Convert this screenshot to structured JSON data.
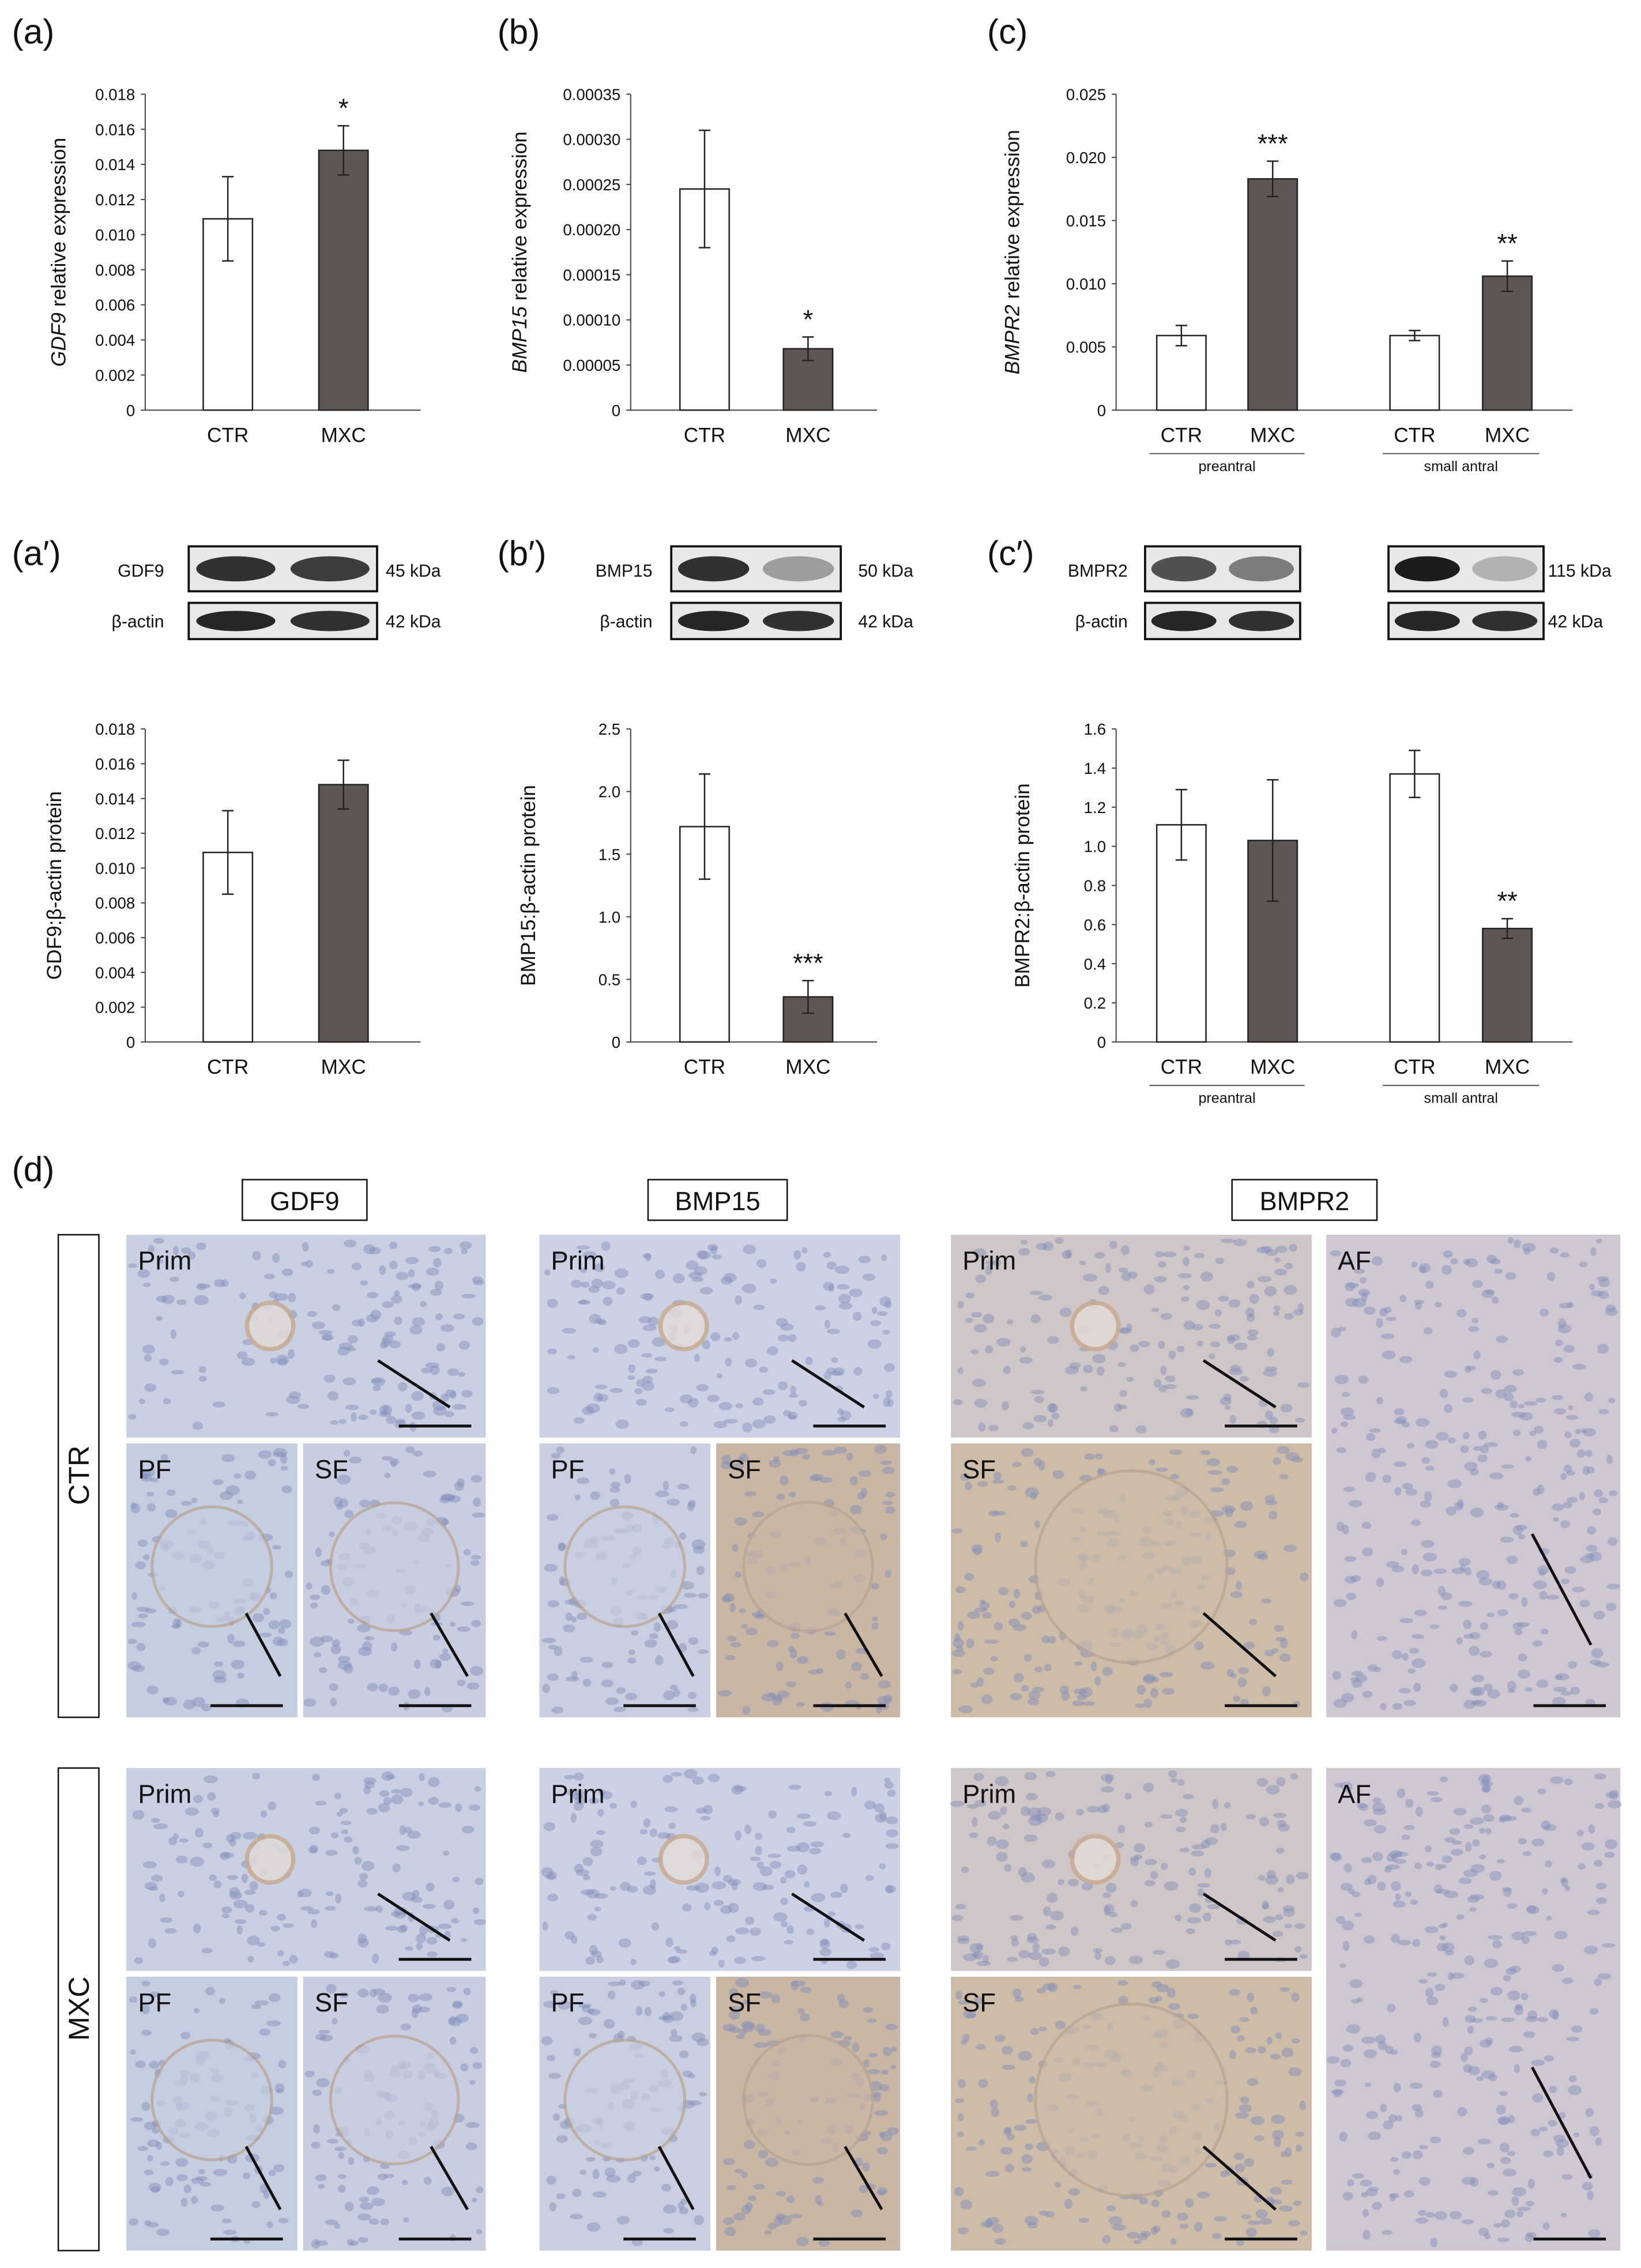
{
  "chart_data": [
    {
      "type": "bar",
      "panel": "(a)",
      "ylabel_italic": "GDF9",
      "ylabel": "relative expression",
      "categories": [
        "CTR",
        "MXC"
      ],
      "values": [
        0.0109,
        0.0148
      ],
      "errors": [
        0.0024,
        0.0014
      ],
      "significance": [
        null,
        "*"
      ],
      "colors": [
        "#ffffff",
        "#5e5655"
      ],
      "ylim": [
        0,
        0.018
      ],
      "yticks": [
        0,
        0.002,
        0.004,
        0.006,
        0.008,
        {
          "value": 0.01,
          "label": "0.010"
        },
        0.012,
        0.014,
        0.016,
        0.018
      ]
    },
    {
      "type": "bar",
      "panel": "(b)",
      "ylabel_italic": "BMP15",
      "ylabel": "relative expression",
      "categories": [
        "CTR",
        "MXC"
      ],
      "values": [
        0.000245,
        6.8e-05
      ],
      "errors": [
        6.5e-05,
        1.3e-05
      ],
      "significance": [
        null,
        "*"
      ],
      "colors": [
        "#ffffff",
        "#5e5655"
      ],
      "ylim": [
        0,
        0.00035
      ],
      "yticks": [
        0,
        5e-05,
        {
          "value": 0.0001,
          "label": "0.00010"
        },
        0.00015,
        {
          "value": 0.0002,
          "label": "0.00020"
        },
        0.00025,
        {
          "value": 0.0003,
          "label": "0.00030"
        },
        0.00035
      ]
    },
    {
      "type": "bar",
      "panel": "(c)",
      "ylabel_italic": "BMPR2",
      "ylabel": "relative expression",
      "categories": [
        "CTR",
        "MXC",
        "CTR",
        "MXC"
      ],
      "groups": [
        "preantral",
        "small antral"
      ],
      "values": [
        0.0059,
        0.0183,
        0.0059,
        0.0106
      ],
      "errors": [
        0.0008,
        0.0014,
        0.0004,
        0.0012
      ],
      "significance": [
        null,
        "***",
        null,
        "**"
      ],
      "colors": [
        "#ffffff",
        "#5e5655",
        "#ffffff",
        "#5e5655"
      ],
      "ylim": [
        0,
        0.025
      ],
      "yticks": [
        0,
        0.005,
        {
          "value": 0.01,
          "label": "0.010"
        },
        0.015,
        {
          "value": 0.02,
          "label": "0.020"
        },
        0.025
      ]
    },
    {
      "type": "bar",
      "ylabel": "GDF9:β-actin protein",
      "categories": [
        "CTR",
        "MXC"
      ],
      "values": [
        0.0109,
        0.0148
      ],
      "errors": [
        0.0024,
        0.0014
      ],
      "colors": [
        "#ffffff",
        "#5e5655"
      ],
      "ylim": [
        0,
        0.018
      ],
      "yticks": [
        0,
        0.002,
        0.004,
        0.006,
        0.008,
        {
          "value": 0.01,
          "label": "0.010"
        },
        0.012,
        0.014,
        0.016,
        0.018
      ]
    },
    {
      "type": "bar",
      "ylabel": "BMP15:β-actin protein",
      "categories": [
        "CTR",
        "MXC"
      ],
      "values": [
        1.72,
        0.36
      ],
      "errors": [
        0.42,
        0.13
      ],
      "significance": [
        null,
        "***"
      ],
      "colors": [
        "#ffffff",
        "#5e5655"
      ],
      "ylim": [
        0,
        2.5
      ],
      "yticks": [
        0,
        0.5,
        {
          "value": 1,
          "label": "1.0"
        },
        1.5,
        {
          "value": 2,
          "label": "2.0"
        },
        2.5
      ]
    },
    {
      "type": "bar",
      "ylabel": "BMPR2:β-actin protein",
      "categories": [
        "CTR",
        "MXC",
        "CTR",
        "MXC"
      ],
      "groups": [
        "preantral",
        "small antral"
      ],
      "values": [
        1.11,
        1.03,
        1.37,
        0.58
      ],
      "errors": [
        0.18,
        0.31,
        0.12,
        0.05
      ],
      "significance": [
        null,
        null,
        null,
        "**"
      ],
      "colors": [
        "#ffffff",
        "#5e5655",
        "#ffffff",
        "#5e5655"
      ],
      "ylim": [
        0,
        1.6
      ],
      "yticks": [
        0,
        0.2,
        0.4,
        0.6,
        0.8,
        {
          "value": 1,
          "label": "1.0"
        },
        1.2,
        1.4,
        1.6
      ]
    }
  ],
  "blots": [
    {
      "panel": "(a′)",
      "protein": "GDF9",
      "control": "β-actin",
      "protein_size": "45 kDa",
      "control_size": "42 kDa"
    },
    {
      "panel": "(b′)",
      "protein": "BMP15",
      "control": "β-actin",
      "protein_size": "50 kDa",
      "control_size": "42 kDa"
    },
    {
      "panel": "(c′)",
      "protein": "BMPR2",
      "control": "β-actin",
      "protein_size": "115 kDa",
      "control_size": "42 kDa"
    }
  ],
  "histology": {
    "panel": "(d)",
    "columns": [
      "GDF9",
      "BMP15",
      "BMPR2"
    ],
    "rows": [
      "CTR",
      "MXC"
    ],
    "tiles": [
      [
        "Prim",
        "PF",
        "SF",
        "Prim",
        "PF",
        "SF",
        "Prim",
        "SF",
        "AF"
      ],
      [
        "Prim",
        "PF",
        "SF",
        "Prim",
        "PF",
        "SF",
        "Prim",
        "SF",
        "AF"
      ]
    ]
  }
}
